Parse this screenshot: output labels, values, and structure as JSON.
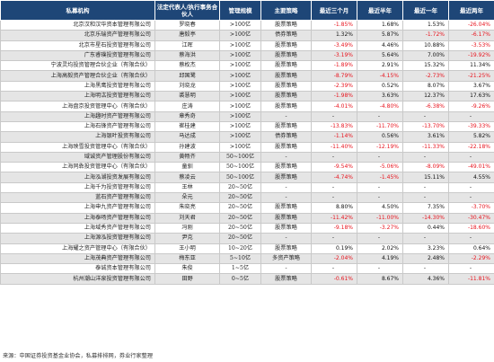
{
  "headers": [
    "私募机构",
    "法定代表人/执行事务合伙人",
    "管理规模",
    "主要策略",
    "最近三个月",
    "最近半年",
    "最近一年",
    "最近两年"
  ],
  "rows": [
    {
      "name": "北京汉和汉华资本管理有限公司",
      "rep": "罗晓春",
      "scale": ">100亿",
      "strategy": "股票策略",
      "m3": "-1.85%",
      "m6": "1.68%",
      "y1": "1.53%",
      "y2": "-26.04%"
    },
    {
      "name": "北京乐瑞资产管理有限公司",
      "rep": "唐毅亭",
      "scale": ">100亿",
      "strategy": "债券策略",
      "m3": "1.32%",
      "m6": "5.87%",
      "y1": "-1.72%",
      "y2": "-6.17%"
    },
    {
      "name": "北京市星石投资管理有限公司",
      "rep": "江晖",
      ">100亿": "",
      "scale": ">100亿",
      "strategy": "股票策略",
      "m3": "-3.49%",
      "m6": "4.46%",
      "y1": "10.88%",
      "y2": "-3.53%"
    },
    {
      "name": "广东睿璞投资管理有限公司",
      "rep": "蔡海洪",
      "scale": ">100亿",
      "strategy": "股票策略",
      "m3": "-3.19%",
      "m6": "5.64%",
      "y1": "7.00%",
      "y2": "-19.92%"
    },
    {
      "name": "宁波灵均投资管理合伙企业（有限合伙）",
      "rep": "蔡枚杰",
      "scale": ">100亿",
      "strategy": "股票策略",
      "m3": "-1.89%",
      "m6": "2.91%",
      "y1": "15.32%",
      "y2": "11.34%"
    },
    {
      "name": "上海高毅资产管理合伙企业（有限合伙）",
      "rep": "邱国鹭",
      "scale": ">100亿",
      "strategy": "股票策略",
      "m3": "-8.79%",
      "m6": "-4.15%",
      "y1": "-2.73%",
      "y2": "-21.25%"
    },
    {
      "name": "上海黑鹰投资管理有限公司",
      "rep": "刘晓龙",
      "scale": ">100亿",
      "strategy": "股票策略",
      "m3": "-2.39%",
      "m6": "0.52%",
      "y1": "8.07%",
      "y2": "3.67%"
    },
    {
      "name": "上海明汯投资管理有限公司",
      "rep": "裘慧明",
      "scale": ">100亿",
      "strategy": "股票策略",
      "m3": "-1.98%",
      "m6": "3.63%",
      "y1": "12.37%",
      "y2": "17.63%"
    },
    {
      "name": "上海盘京投资管理中心（有限合伙）",
      "rep": "庄涛",
      "scale": ">100亿",
      "strategy": "股票策略",
      "m3": "-4.01%",
      "m6": "-4.80%",
      "y1": "-6.38%",
      "y2": "-9.26%"
    },
    {
      "name": "上海趣时资产管理有限公司",
      "rep": "章秀奇",
      "scale": ">100亿",
      "strategy": "-",
      "m3": "-",
      "m6": "-",
      "y1": "-",
      "y2": "-"
    },
    {
      "name": "上海石锋资产管理有限公司",
      "rep": "崔桂建",
      "scale": ">100亿",
      "strategy": "股票策略",
      "m3": "-13.83%",
      "m6": "-11.70%",
      "y1": "-13.70%",
      "y2": "-39.33%"
    },
    {
      "name": "上海银叶投资有限公司",
      "rep": "马达成",
      "scale": ">100亿",
      "strategy": "债券策略",
      "m3": "-1.14%",
      "m6": "0.56%",
      "y1": "3.61%",
      "y2": "5.82%"
    },
    {
      "name": "上海映雪投资管理中心（有限合伙）",
      "rep": "孙建波",
      "scale": ">100亿",
      "strategy": "股票策略",
      "m3": "-11.40%",
      "m6": "-12.19%",
      "y1": "-11.33%",
      "y2": "-22.18%"
    },
    {
      "name": "域诚资产管理股份有限公司",
      "rep": "黄畅齐",
      "scale": "50~100亿",
      "strategy": "-",
      "m3": "-",
      "m6": "-",
      "y1": "-",
      "y2": "-"
    },
    {
      "name": "上海同犇投资管理中心（有限合伙）",
      "rep": "童驯",
      "scale": "50~100亿",
      "strategy": "股票策略",
      "m3": "-9.54%",
      "m6": "-5.06%",
      "y1": "-8.09%",
      "y2": "-49.01%"
    },
    {
      "name": "上海泓湖投资发展有限公司",
      "rep": "蔡凌云",
      "scale": "50~100亿",
      "strategy": "股票策略",
      "m3": "-4.74%",
      "m6": "-1.45%",
      "y1": "15.11%",
      "y2": "4.55%"
    },
    {
      "name": "上海千为投资管理有限公司",
      "rep": "王林",
      "scale": "20~50亿",
      "strategy": "-",
      "m3": "-",
      "m6": "-",
      "y1": "-",
      "y2": "-"
    },
    {
      "name": "蓝石资产管理有限公司",
      "rep": "朵元",
      "scale": "20~50亿",
      "strategy": "-",
      "m3": "-",
      "m6": "-",
      "y1": "-",
      "y2": "-"
    },
    {
      "name": "上海申九资产管理有限公司",
      "rep": "朱晓亮",
      "scale": "20~50亿",
      "strategy": "股票策略",
      "m3": "8.80%",
      "m6": "4.50%",
      "y1": "7.35%",
      "y2": "-3.70%"
    },
    {
      "name": "上海泰旸资产管理有限公司",
      "rep": "刘天君",
      "scale": "20~50亿",
      "strategy": "股票策略",
      "m3": "-11.42%",
      "m6": "-11.00%",
      "y1": "-14.30%",
      "y2": "-30.47%"
    },
    {
      "name": "上海域秀资产管理有限公司",
      "rep": "冯刚",
      "scale": "20~50亿",
      "strategy": "股票策略",
      "m3": "-9.18%",
      "m6": "-3.27%",
      "y1": "0.44%",
      "y2": "-18.60%"
    },
    {
      "name": "上海源泓投资管理有限公司",
      "rep": "尹克",
      "scale": "20~50亿",
      "strategy": "-",
      "m3": "-",
      "m6": "-",
      "y1": "-",
      "y2": "-"
    },
    {
      "name": "上海耀之资产管理中心（有限合伙）",
      "rep": "王小明",
      "scale": "10~20亿",
      "strategy": "股票策略",
      "m3": "0.19%",
      "m6": "2.02%",
      "y1": "3.23%",
      "y2": "0.64%"
    },
    {
      "name": "上海茂典资产管理有限公司",
      "rep": "梅东亚",
      "scale": "5~10亿",
      "strategy": "多资产策略",
      "m3": "-2.04%",
      "m6": "4.19%",
      "y1": "2.48%",
      "y2": "-2.29%"
    },
    {
      "name": "泰诚资本管理有限公司",
      "rep": "朱俊",
      "scale": "1~5亿",
      "strategy": "-",
      "m3": "-",
      "m6": "-",
      "y1": "-",
      "y2": "-"
    },
    {
      "name": "杭州潮山洋泉投资管理有限公司",
      "rep": "田野",
      "scale": "0~5亿",
      "strategy": "股票策略",
      "m3": "-0.61%",
      "m6": "8.67%",
      "y1": "4.36%",
      "y2": "-11.81%"
    }
  ],
  "source": "来源：中国证券投资基金业协会，私募排排网，券业行家整理",
  "colors": {
    "header_bg": "#1e4677",
    "negative": "#e8141e",
    "stripe": "#e5e5e5"
  }
}
